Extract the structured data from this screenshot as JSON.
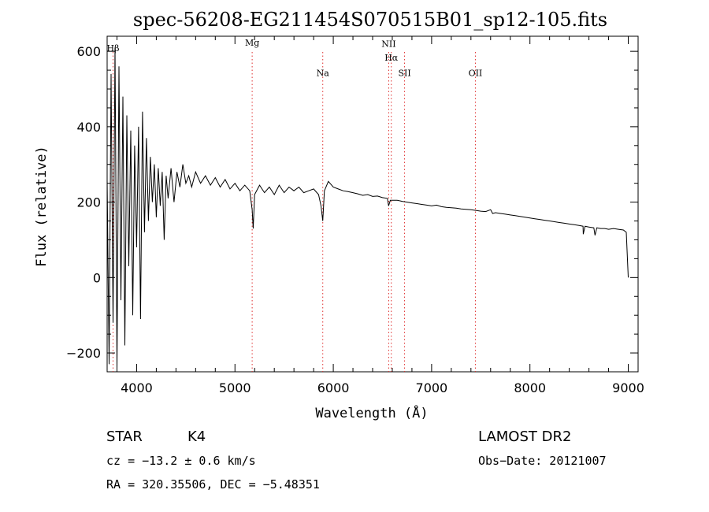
{
  "chart_data": {
    "type": "line",
    "title": "spec-56208-EG211454S070515B01_sp12-105.fits",
    "xlabel": "Wavelength (Å)",
    "ylabel": "Flux (relative)",
    "xlim": [
      3700,
      9100
    ],
    "ylim": [
      -250,
      640
    ],
    "x_ticks": [
      4000,
      5000,
      6000,
      7000,
      8000,
      9000
    ],
    "y_ticks": [
      -200,
      0,
      200,
      400,
      600
    ],
    "grid": false,
    "line_color": "#000000",
    "marker_color": "#e0302f",
    "spectral_lines": [
      {
        "label": "Hβ",
        "x": 3760,
        "label_y": 600
      },
      {
        "label": "Mg",
        "x": 5175,
        "label_y": 615
      },
      {
        "label": "Na",
        "x": 5893,
        "label_y": 535
      },
      {
        "label": "NII",
        "x": 6564,
        "label_y": 612
      },
      {
        "label": "Hα",
        "x": 6590,
        "label_y": 575
      },
      {
        "label": "SII",
        "x": 6725,
        "label_y": 535
      },
      {
        "label": "OII",
        "x": 7445,
        "label_y": 535
      }
    ],
    "series": [
      {
        "values_xy": [
          [
            3700,
            260
          ],
          [
            3720,
            -230
          ],
          [
            3740,
            540
          ],
          [
            3760,
            -120
          ],
          [
            3780,
            610
          ],
          [
            3800,
            -240
          ],
          [
            3820,
            560
          ],
          [
            3840,
            -60
          ],
          [
            3860,
            480
          ],
          [
            3880,
            -180
          ],
          [
            3900,
            430
          ],
          [
            3920,
            30
          ],
          [
            3940,
            390
          ],
          [
            3960,
            -100
          ],
          [
            3980,
            350
          ],
          [
            4000,
            80
          ],
          [
            4020,
            400
          ],
          [
            4040,
            -110
          ],
          [
            4060,
            440
          ],
          [
            4080,
            120
          ],
          [
            4100,
            370
          ],
          [
            4120,
            150
          ],
          [
            4140,
            320
          ],
          [
            4160,
            200
          ],
          [
            4180,
            300
          ],
          [
            4200,
            160
          ],
          [
            4220,
            290
          ],
          [
            4240,
            190
          ],
          [
            4260,
            280
          ],
          [
            4280,
            100
          ],
          [
            4300,
            270
          ],
          [
            4320,
            210
          ],
          [
            4350,
            290
          ],
          [
            4380,
            200
          ],
          [
            4410,
            280
          ],
          [
            4440,
            240
          ],
          [
            4470,
            300
          ],
          [
            4500,
            250
          ],
          [
            4530,
            270
          ],
          [
            4560,
            240
          ],
          [
            4600,
            280
          ],
          [
            4650,
            250
          ],
          [
            4700,
            270
          ],
          [
            4750,
            245
          ],
          [
            4800,
            265
          ],
          [
            4850,
            240
          ],
          [
            4900,
            260
          ],
          [
            4950,
            235
          ],
          [
            5000,
            250
          ],
          [
            5050,
            230
          ],
          [
            5100,
            245
          ],
          [
            5150,
            230
          ],
          [
            5175,
            180
          ],
          [
            5185,
            130
          ],
          [
            5200,
            220
          ],
          [
            5250,
            245
          ],
          [
            5300,
            225
          ],
          [
            5350,
            240
          ],
          [
            5400,
            220
          ],
          [
            5450,
            245
          ],
          [
            5500,
            225
          ],
          [
            5550,
            240
          ],
          [
            5600,
            230
          ],
          [
            5650,
            240
          ],
          [
            5700,
            225
          ],
          [
            5750,
            230
          ],
          [
            5800,
            235
          ],
          [
            5850,
            220
          ],
          [
            5875,
            190
          ],
          [
            5893,
            150
          ],
          [
            5910,
            230
          ],
          [
            5950,
            255
          ],
          [
            6000,
            240
          ],
          [
            6050,
            235
          ],
          [
            6100,
            230
          ],
          [
            6150,
            228
          ],
          [
            6200,
            225
          ],
          [
            6250,
            222
          ],
          [
            6300,
            218
          ],
          [
            6350,
            220
          ],
          [
            6400,
            215
          ],
          [
            6450,
            216
          ],
          [
            6500,
            212
          ],
          [
            6550,
            210
          ],
          [
            6563,
            190
          ],
          [
            6580,
            205
          ],
          [
            6650,
            205
          ],
          [
            6700,
            202
          ],
          [
            6750,
            200
          ],
          [
            6800,
            198
          ],
          [
            6850,
            196
          ],
          [
            6900,
            194
          ],
          [
            6950,
            192
          ],
          [
            7000,
            190
          ],
          [
            7050,
            192
          ],
          [
            7100,
            188
          ],
          [
            7150,
            186
          ],
          [
            7200,
            185
          ],
          [
            7250,
            184
          ],
          [
            7300,
            182
          ],
          [
            7350,
            181
          ],
          [
            7400,
            180
          ],
          [
            7450,
            178
          ],
          [
            7500,
            176
          ],
          [
            7550,
            175
          ],
          [
            7600,
            180
          ],
          [
            7620,
            170
          ],
          [
            7650,
            172
          ],
          [
            7700,
            170
          ],
          [
            7750,
            168
          ],
          [
            7800,
            166
          ],
          [
            7850,
            164
          ],
          [
            7900,
            162
          ],
          [
            7950,
            160
          ],
          [
            8000,
            158
          ],
          [
            8050,
            156
          ],
          [
            8100,
            154
          ],
          [
            8150,
            152
          ],
          [
            8200,
            150
          ],
          [
            8250,
            148
          ],
          [
            8300,
            146
          ],
          [
            8350,
            144
          ],
          [
            8400,
            142
          ],
          [
            8450,
            140
          ],
          [
            8500,
            138
          ],
          [
            8540,
            136
          ],
          [
            8542,
            115
          ],
          [
            8560,
            136
          ],
          [
            8600,
            134
          ],
          [
            8650,
            132
          ],
          [
            8662,
            112
          ],
          [
            8680,
            132
          ],
          [
            8720,
            130
          ],
          [
            8760,
            130
          ],
          [
            8800,
            128
          ],
          [
            8850,
            130
          ],
          [
            8900,
            128
          ],
          [
            8950,
            126
          ],
          [
            8980,
            120
          ],
          [
            9000,
            0
          ]
        ]
      }
    ]
  },
  "footer": {
    "object_type": "STAR",
    "subclass": "K4",
    "survey": "LAMOST DR2",
    "cz": "cz = −13.2 ± 0.6 km/s",
    "obs_date": "Obs−Date: 20121007",
    "coords": "RA = 320.35506, DEC =  −5.48351"
  }
}
